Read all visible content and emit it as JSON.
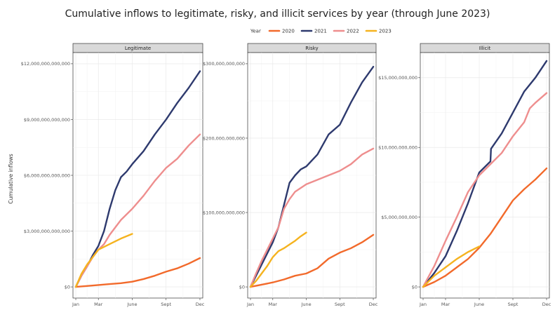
{
  "chart_data": {
    "type": "line",
    "title": "Cumulative inflows to legitimate, risky, and illicit services by year (through June 2023)",
    "ylabel": "Cumulative inflows",
    "legend": {
      "title": "Year",
      "placement": "top",
      "entries": [
        {
          "name": "2020",
          "color": "#F26A2B"
        },
        {
          "name": "2021",
          "color": "#2E3A6E"
        },
        {
          "name": "2022",
          "color": "#EE8E8E"
        },
        {
          "name": "2023",
          "color": "#F5B31F"
        }
      ]
    },
    "x_ticks": [
      {
        "label": "Jan",
        "month": 1
      },
      {
        "label": "Mar",
        "month": 3
      },
      {
        "label": "June",
        "month": 6
      },
      {
        "label": "Sept",
        "month": 9
      },
      {
        "label": "Dec",
        "month": 12
      }
    ],
    "grid": true,
    "panels": [
      {
        "name": "Legitimate",
        "ylim": [
          0,
          12000000000000
        ],
        "y_ticks": [
          {
            "value": 0,
            "label": "$0"
          },
          {
            "value": 3000000000000,
            "label": "$3,000,000,000,000"
          },
          {
            "value": 6000000000000,
            "label": "$6,000,000,000,000"
          },
          {
            "value": 9000000000000,
            "label": "$9,000,000,000,000"
          },
          {
            "value": 12000000000000,
            "label": "$12,000,000,000,000"
          }
        ],
        "series": [
          {
            "name": "2020",
            "color": "#F26A2B",
            "points": [
              [
                1,
                0
              ],
              [
                2,
                50000000000.0
              ],
              [
                3,
                100000000000.0
              ],
              [
                4,
                150000000000.0
              ],
              [
                5,
                200000000000.0
              ],
              [
                6,
                280000000000.0
              ],
              [
                7,
                420000000000.0
              ],
              [
                8,
                600000000000.0
              ],
              [
                9,
                820000000000.0
              ],
              [
                10,
                1000000000000.0
              ],
              [
                11,
                1250000000000.0
              ],
              [
                12,
                1550000000000.0
              ]
            ]
          },
          {
            "name": "2021",
            "color": "#2E3A6E",
            "points": [
              [
                1,
                0
              ],
              [
                1.5,
                600000000000.0
              ],
              [
                2,
                1100000000000.0
              ],
              [
                2.5,
                1700000000000.0
              ],
              [
                3,
                2200000000000.0
              ],
              [
                3.5,
                3000000000000.0
              ],
              [
                4,
                4200000000000.0
              ],
              [
                4.5,
                5200000000000.0
              ],
              [
                5,
                5900000000000.0
              ],
              [
                5.5,
                6200000000000.0
              ],
              [
                6,
                6600000000000.0
              ],
              [
                7,
                7300000000000.0
              ],
              [
                8,
                8200000000000.0
              ],
              [
                9,
                9000000000000.0
              ],
              [
                10,
                9900000000000.0
              ],
              [
                11,
                10700000000000.0
              ],
              [
                12,
                11600000000000.0
              ]
            ]
          },
          {
            "name": "2022",
            "color": "#EE8E8E",
            "points": [
              [
                1,
                0
              ],
              [
                1.5,
                600000000000.0
              ],
              [
                2,
                1100000000000.0
              ],
              [
                2.5,
                1600000000000.0
              ],
              [
                3,
                2000000000000.0
              ],
              [
                3.5,
                2300000000000.0
              ],
              [
                4,
                2800000000000.0
              ],
              [
                5,
                3600000000000.0
              ],
              [
                6,
                4200000000000.0
              ],
              [
                7,
                4900000000000.0
              ],
              [
                8,
                5700000000000.0
              ],
              [
                9,
                6400000000000.0
              ],
              [
                10,
                6900000000000.0
              ],
              [
                11,
                7600000000000.0
              ],
              [
                12,
                8200000000000.0
              ]
            ]
          },
          {
            "name": "2023",
            "color": "#F5B31F",
            "points": [
              [
                1,
                0
              ],
              [
                1.5,
                700000000000.0
              ],
              [
                2,
                1200000000000.0
              ],
              [
                2.5,
                1600000000000.0
              ],
              [
                3,
                2000000000000.0
              ],
              [
                4,
                2300000000000.0
              ],
              [
                5,
                2600000000000.0
              ],
              [
                6,
                2850000000000.0
              ]
            ]
          }
        ]
      },
      {
        "name": "Risky",
        "ylim": [
          0,
          300000000000
        ],
        "y_ticks": [
          {
            "value": 0,
            "label": "$0"
          },
          {
            "value": 100000000000,
            "label": "$100,000,000,000"
          },
          {
            "value": 200000000000,
            "label": "$200,000,000,000"
          },
          {
            "value": 300000000000,
            "label": "$300,000,000,000"
          }
        ],
        "series": [
          {
            "name": "2020",
            "color": "#F26A2B",
            "points": [
              [
                1,
                0
              ],
              [
                2,
                3000000000.0
              ],
              [
                3,
                6000000000.0
              ],
              [
                4,
                10000000000.0
              ],
              [
                5,
                15000000000.0
              ],
              [
                6,
                18000000000.0
              ],
              [
                7,
                25000000000.0
              ],
              [
                8,
                38000000000.0
              ],
              [
                9,
                46000000000.0
              ],
              [
                10,
                52000000000.0
              ],
              [
                11,
                60000000000.0
              ],
              [
                12,
                70000000000.0
              ]
            ]
          },
          {
            "name": "2021",
            "color": "#2E3A6E",
            "points": [
              [
                1,
                0
              ],
              [
                1.5,
                15000000000.0
              ],
              [
                2,
                30000000000.0
              ],
              [
                2.5,
                45000000000.0
              ],
              [
                3,
                60000000000.0
              ],
              [
                3.5,
                80000000000.0
              ],
              [
                4,
                110000000000.0
              ],
              [
                4.5,
                140000000000.0
              ],
              [
                5,
                150000000000.0
              ],
              [
                5.5,
                158000000000.0
              ],
              [
                6,
                162000000000.0
              ],
              [
                7,
                178000000000.0
              ],
              [
                8,
                205000000000.0
              ],
              [
                9,
                218000000000.0
              ],
              [
                10,
                248000000000.0
              ],
              [
                11,
                275000000000.0
              ],
              [
                12,
                296000000000.0
              ]
            ]
          },
          {
            "name": "2022",
            "color": "#EE8E8E",
            "points": [
              [
                1,
                0
              ],
              [
                1.5,
                18000000000.0
              ],
              [
                2,
                35000000000.0
              ],
              [
                2.5,
                50000000000.0
              ],
              [
                3,
                65000000000.0
              ],
              [
                3.5,
                80000000000.0
              ],
              [
                4,
                105000000000.0
              ],
              [
                4.5,
                118000000000.0
              ],
              [
                5,
                128000000000.0
              ],
              [
                6,
                138000000000.0
              ],
              [
                7,
                144000000000.0
              ],
              [
                8,
                150000000000.0
              ],
              [
                9,
                156000000000.0
              ],
              [
                10,
                165000000000.0
              ],
              [
                11,
                178000000000.0
              ],
              [
                12,
                186000000000.0
              ]
            ]
          },
          {
            "name": "2023",
            "color": "#F5B31F",
            "points": [
              [
                1,
                0
              ],
              [
                1.5,
                8000000000.0
              ],
              [
                2,
                18000000000.0
              ],
              [
                2.5,
                28000000000.0
              ],
              [
                3,
                40000000000.0
              ],
              [
                3.5,
                48000000000.0
              ],
              [
                4,
                52000000000.0
              ],
              [
                4.5,
                57000000000.0
              ],
              [
                5,
                62000000000.0
              ],
              [
                5.5,
                68000000000.0
              ],
              [
                6,
                73000000000.0
              ]
            ]
          }
        ]
      },
      {
        "name": "Illicit",
        "ylim": [
          0,
          16000000000
        ],
        "y_ticks": [
          {
            "value": 0,
            "label": "$0"
          },
          {
            "value": 5000000000,
            "label": "$5,000,000,000"
          },
          {
            "value": 10000000000,
            "label": "$10,000,000,000"
          },
          {
            "value": 15000000000,
            "label": "$15,000,000,000"
          }
        ],
        "series": [
          {
            "name": "2020",
            "color": "#F26A2B",
            "points": [
              [
                1,
                0
              ],
              [
                2,
                350000000.0
              ],
              [
                3,
                800000000.0
              ],
              [
                4,
                1400000000.0
              ],
              [
                5,
                2000000000.0
              ],
              [
                6,
                2800000000.0
              ],
              [
                7,
                3800000000.0
              ],
              [
                8,
                5000000000.0
              ],
              [
                9,
                6200000000.0
              ],
              [
                10,
                7000000000.0
              ],
              [
                11,
                7700000000.0
              ],
              [
                12,
                8500000000.0
              ]
            ]
          },
          {
            "name": "2021",
            "color": "#2E3A6E",
            "points": [
              [
                1,
                0
              ],
              [
                2,
                1000000000.0
              ],
              [
                3,
                2200000000.0
              ],
              [
                4,
                4000000000.0
              ],
              [
                5,
                6000000000.0
              ],
              [
                6,
                8200000000.0
              ],
              [
                7,
                9000000000.0
              ],
              [
                7.05,
                9900000000.0
              ],
              [
                8,
                11000000000.0
              ],
              [
                9,
                12500000000.0
              ],
              [
                10,
                14000000000.0
              ],
              [
                11,
                15000000000.0
              ],
              [
                12,
                16200000000.0
              ]
            ]
          },
          {
            "name": "2022",
            "color": "#EE8E8E",
            "points": [
              [
                1,
                0
              ],
              [
                2,
                1500000000.0
              ],
              [
                3,
                3300000000.0
              ],
              [
                4,
                5000000000.0
              ],
              [
                5,
                6800000000.0
              ],
              [
                6,
                8000000000.0
              ],
              [
                7,
                8800000000.0
              ],
              [
                8,
                9600000000.0
              ],
              [
                9,
                10800000000.0
              ],
              [
                10,
                11800000000.0
              ],
              [
                10.5,
                12800000000.0
              ],
              [
                11,
                13200000000.0
              ],
              [
                12,
                13900000000.0
              ]
            ]
          },
          {
            "name": "2023",
            "color": "#F5B31F",
            "points": [
              [
                1,
                0
              ],
              [
                2,
                800000000.0
              ],
              [
                3,
                1400000000.0
              ],
              [
                4,
                2000000000.0
              ],
              [
                5,
                2500000000.0
              ],
              [
                6,
                2900000000.0
              ]
            ]
          }
        ]
      }
    ]
  }
}
